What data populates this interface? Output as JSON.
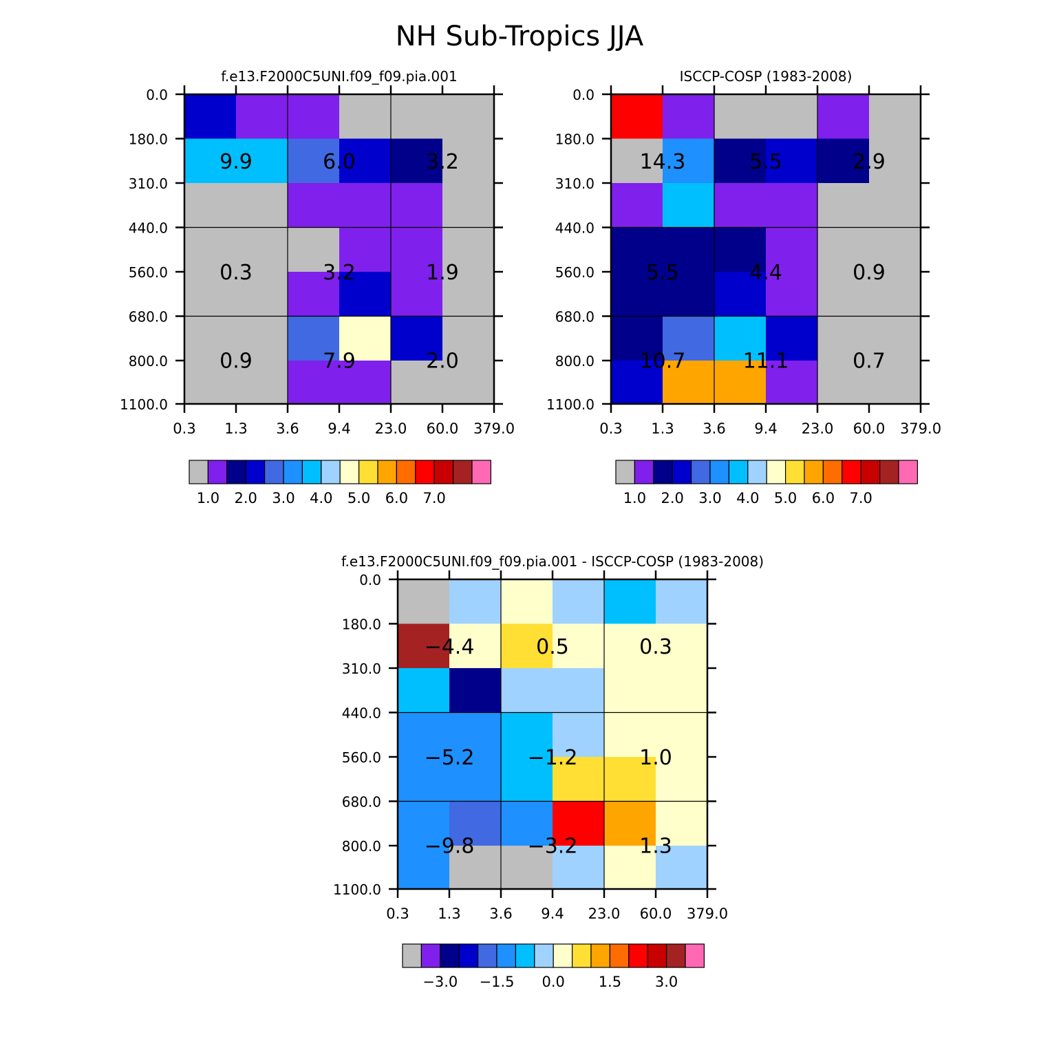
{
  "figure_title": "NH Sub-Tropics JJA",
  "colors": {
    "main_palette": [
      "#bebebe",
      "#8020ec",
      "#00008b",
      "#0000cd",
      "#4169e1",
      "#1e90ff",
      "#00bfff",
      "#a0d2ff",
      "#ffffcc",
      "#ffdf33",
      "#ffa500",
      "#ff6c00",
      "#ff0000",
      "#c80000",
      "#a52222",
      "#ff69b4"
    ],
    "diff_palette": [
      "#bebebe",
      "#8020ec",
      "#00008b",
      "#0000cd",
      "#4169e1",
      "#1e90ff",
      "#00bfff",
      "#a0d2ff",
      "#ffffcc",
      "#ffdf33",
      "#ffa500",
      "#ff6c00",
      "#ff0000",
      "#c80000",
      "#a52222",
      "#ff69b4"
    ]
  },
  "chart_data": [
    {
      "type": "heatmap",
      "title": "f.e13.F2000C5UNI.f09_f09.pia.001",
      "x_ticks": [
        "0.3",
        "1.3",
        "3.6",
        "9.4",
        "23.0",
        "60.0",
        "379.0"
      ],
      "y_ticks": [
        "0.0",
        "180.0",
        "310.0",
        "440.0",
        "560.0",
        "680.0",
        "800.0",
        "1100.0"
      ],
      "cell_color_index": [
        [
          3,
          1,
          1,
          0,
          0,
          0
        ],
        [
          6,
          6,
          4,
          3,
          2,
          0
        ],
        [
          0,
          0,
          1,
          1,
          1,
          0
        ],
        [
          0,
          0,
          0,
          1,
          1,
          0
        ],
        [
          0,
          0,
          1,
          3,
          1,
          0
        ],
        [
          0,
          0,
          4,
          8,
          3,
          0
        ],
        [
          0,
          0,
          1,
          1,
          0,
          0
        ]
      ],
      "block_values": [
        "9.9",
        "6.0",
        "3.2",
        "0.3",
        "3.2",
        "1.9",
        "0.9",
        "7.9",
        "2.0"
      ],
      "colorbar_labels": [
        "1.0",
        "2.0",
        "3.0",
        "4.0",
        "5.0",
        "6.0",
        "7.0"
      ]
    },
    {
      "type": "heatmap",
      "title": "ISCCP-COSP (1983-2008)",
      "x_ticks": [
        "0.3",
        "1.3",
        "3.6",
        "9.4",
        "23.0",
        "60.0",
        "379.0"
      ],
      "y_ticks": [
        "0.0",
        "180.0",
        "310.0",
        "440.0",
        "560.0",
        "680.0",
        "800.0",
        "1100.0"
      ],
      "cell_color_index": [
        [
          12,
          1,
          0,
          0,
          1,
          0
        ],
        [
          0,
          5,
          2,
          3,
          2,
          0
        ],
        [
          1,
          6,
          1,
          1,
          0,
          0
        ],
        [
          2,
          2,
          2,
          1,
          0,
          0
        ],
        [
          2,
          2,
          3,
          1,
          0,
          0
        ],
        [
          2,
          4,
          6,
          3,
          0,
          0
        ],
        [
          3,
          10,
          10,
          1,
          0,
          0
        ]
      ],
      "block_values": [
        "14.3",
        "5.5",
        "2.9",
        "5.5",
        "4.4",
        "0.9",
        "10.7",
        "11.1",
        "0.7"
      ],
      "colorbar_labels": [
        "1.0",
        "2.0",
        "3.0",
        "4.0",
        "5.0",
        "6.0",
        "7.0"
      ]
    },
    {
      "type": "heatmap",
      "title": "f.e13.F2000C5UNI.f09_f09.pia.001 - ISCCP-COSP (1983-2008)",
      "x_ticks": [
        "0.3",
        "1.3",
        "3.6",
        "9.4",
        "23.0",
        "60.0",
        "379.0"
      ],
      "y_ticks": [
        "0.0",
        "180.0",
        "310.0",
        "440.0",
        "560.0",
        "680.0",
        "800.0",
        "1100.0"
      ],
      "cell_color_index": [
        [
          0,
          7,
          8,
          7,
          6,
          7
        ],
        [
          14,
          8,
          9,
          8,
          8,
          8
        ],
        [
          6,
          2,
          7,
          7,
          8,
          8
        ],
        [
          5,
          5,
          6,
          7,
          8,
          8
        ],
        [
          5,
          5,
          6,
          9,
          9,
          8
        ],
        [
          5,
          4,
          5,
          12,
          10,
          8
        ],
        [
          5,
          0,
          0,
          7,
          8,
          7
        ]
      ],
      "block_values": [
        "-4.4",
        "0.5",
        "0.3",
        "-5.2",
        "-1.2",
        "1.0",
        "-9.8",
        "-3.2",
        "1.3"
      ],
      "colorbar_labels": [
        "-3.0",
        "-1.5",
        "0.0",
        "1.5",
        "3.0"
      ]
    }
  ]
}
